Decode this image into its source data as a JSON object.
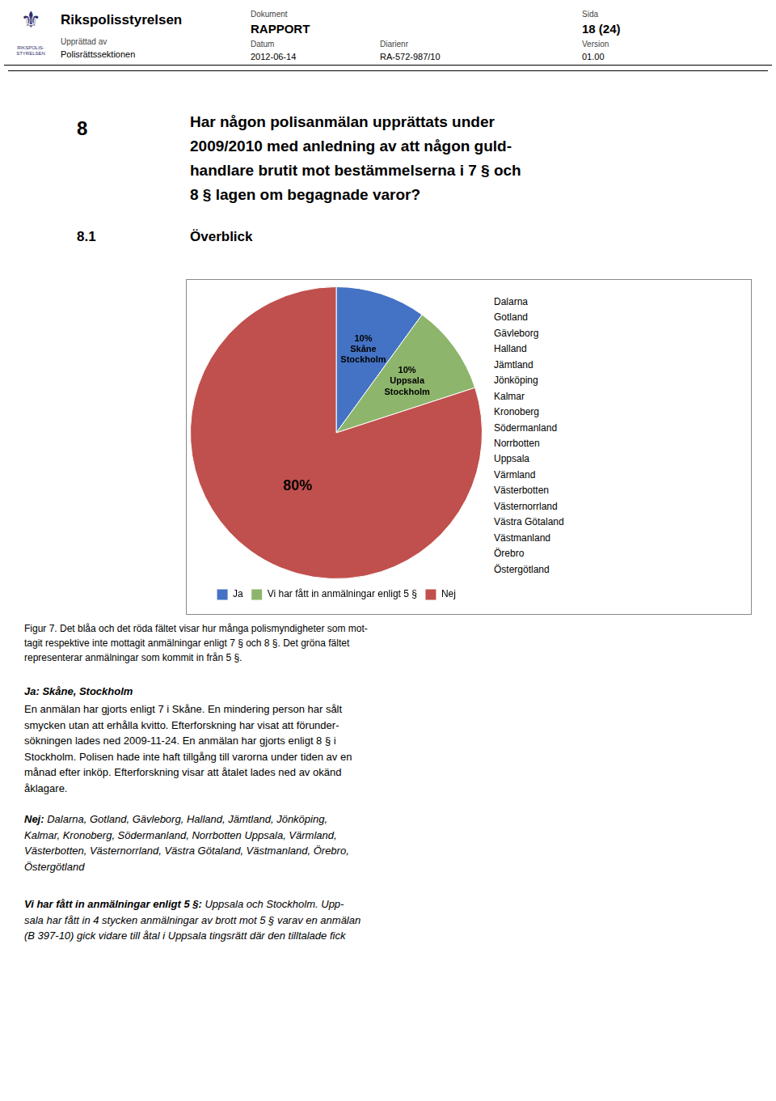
{
  "header": {
    "logo_symbol": "⚜",
    "logo_text": "RIKSPOLIS-\nSTYRELSEN",
    "name": "Rikspolisstyrelsen",
    "fields": [
      {
        "label": "Upprättad av",
        "value": "Polisrättssektionen"
      },
      {
        "label": "Dokument",
        "value": "RAPPORT"
      },
      {
        "label": "Datum",
        "value": "2012-06-14"
      },
      {
        "label": "Diarienr",
        "value": "RA-572-987/10"
      },
      {
        "label": "Sida",
        "value": "18 (24)"
      },
      {
        "label": "Version",
        "value": "01.00"
      }
    ]
  },
  "question": {
    "number": "8",
    "lines": [
      "Har någon polisanmälan upprättats under",
      "2009/2010 med anledning av att någon guld-",
      "handlare brutit mot bestämmelserna i 7 § och",
      "8 § lagen om begagnade varor?"
    ]
  },
  "section": {
    "number": "8.1",
    "title": "Överblick"
  },
  "chart_data": {
    "type": "pie",
    "categories": [
      "Ja",
      "Vi har fått in anmälningar enligt 5 §",
      "Nej"
    ],
    "values": [
      10,
      10,
      80
    ],
    "value_labels": [
      "10%\nSkåne\nStockholm",
      "10%\nUppsala\nStockholm",
      "80%"
    ],
    "colors": [
      "#4472C4",
      "#8DB56C",
      "#C0504D"
    ],
    "data_labels": true,
    "legend": "bottom",
    "annotations": [
      "Dalarna",
      "Gotland",
      "Gävleborg",
      "Halland",
      "Jämtland",
      "Jönköping",
      "Kalmar",
      "Kronoberg",
      "Södermanland",
      "Norrbotten",
      "Uppsala",
      "Värmland",
      "Västerbotten",
      "Västernorrland",
      "Västra Götaland",
      "Västmanland",
      "Örebro",
      "Östergötland"
    ]
  },
  "caption": "Figur 7. Det blåa och det röda fältet visar hur många polismyndigheter som mot-\ntagit respektive inte mottagit anmälningar enligt 7 § och 8 §. Det gröna fältet\nrepresenterar anmälningar som kommit in från 5 §.",
  "body": {
    "ja_heading": "Ja: Skåne, Stockholm",
    "ja_text": "En anmälan har gjorts enligt 7 i Skåne. En mindering person har sålt\nsmycken utan att erhålla kvitto. Efterforskning har visat att förunder-\nsökningen lades ned 2009-11-24. En anmälan har gjorts enligt 8 § i\nStockholm. Polisen hade inte haft tillgång till varorna under tiden av en\nmånad efter inköp. Efterforskning visar att åtalet lades ned av okänd\nåklagare.",
    "nej_label": "Nej:",
    "nej_text": " Dalarna, Gotland, Gävleborg, Halland, Jämtland, Jönköping,\nKalmar, Kronoberg, Södermanland, Norrbotten Uppsala, Värmland,\nVästerbotten, Västernorrland, Västra Götaland, Västmanland, Örebro,\nÖstergötland",
    "vi_label": "Vi har fått in anmälningar enligt 5 §:",
    "vi_text": " Uppsala och Stockholm. Upp-\nsala har fått in 4 stycken anmälningar av brott mot 5 § varav en anmälan\n(B 397-10) gick vidare till åtal i Uppsala tingsrätt där den tilltalade fick"
  }
}
